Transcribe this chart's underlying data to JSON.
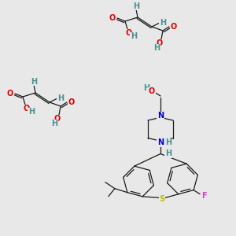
{
  "bg_color": "#e8e8e8",
  "fig_size": [
    3.0,
    3.0
  ],
  "dpi": 100,
  "atom_colors": {
    "H": "#4a9090",
    "O": "#dd0000",
    "N": "#0000cc",
    "S": "#bbbb00",
    "F": "#cc44cc",
    "C": "#333333"
  },
  "bond_color": "#1a1a1a",
  "bond_lw": 0.9
}
